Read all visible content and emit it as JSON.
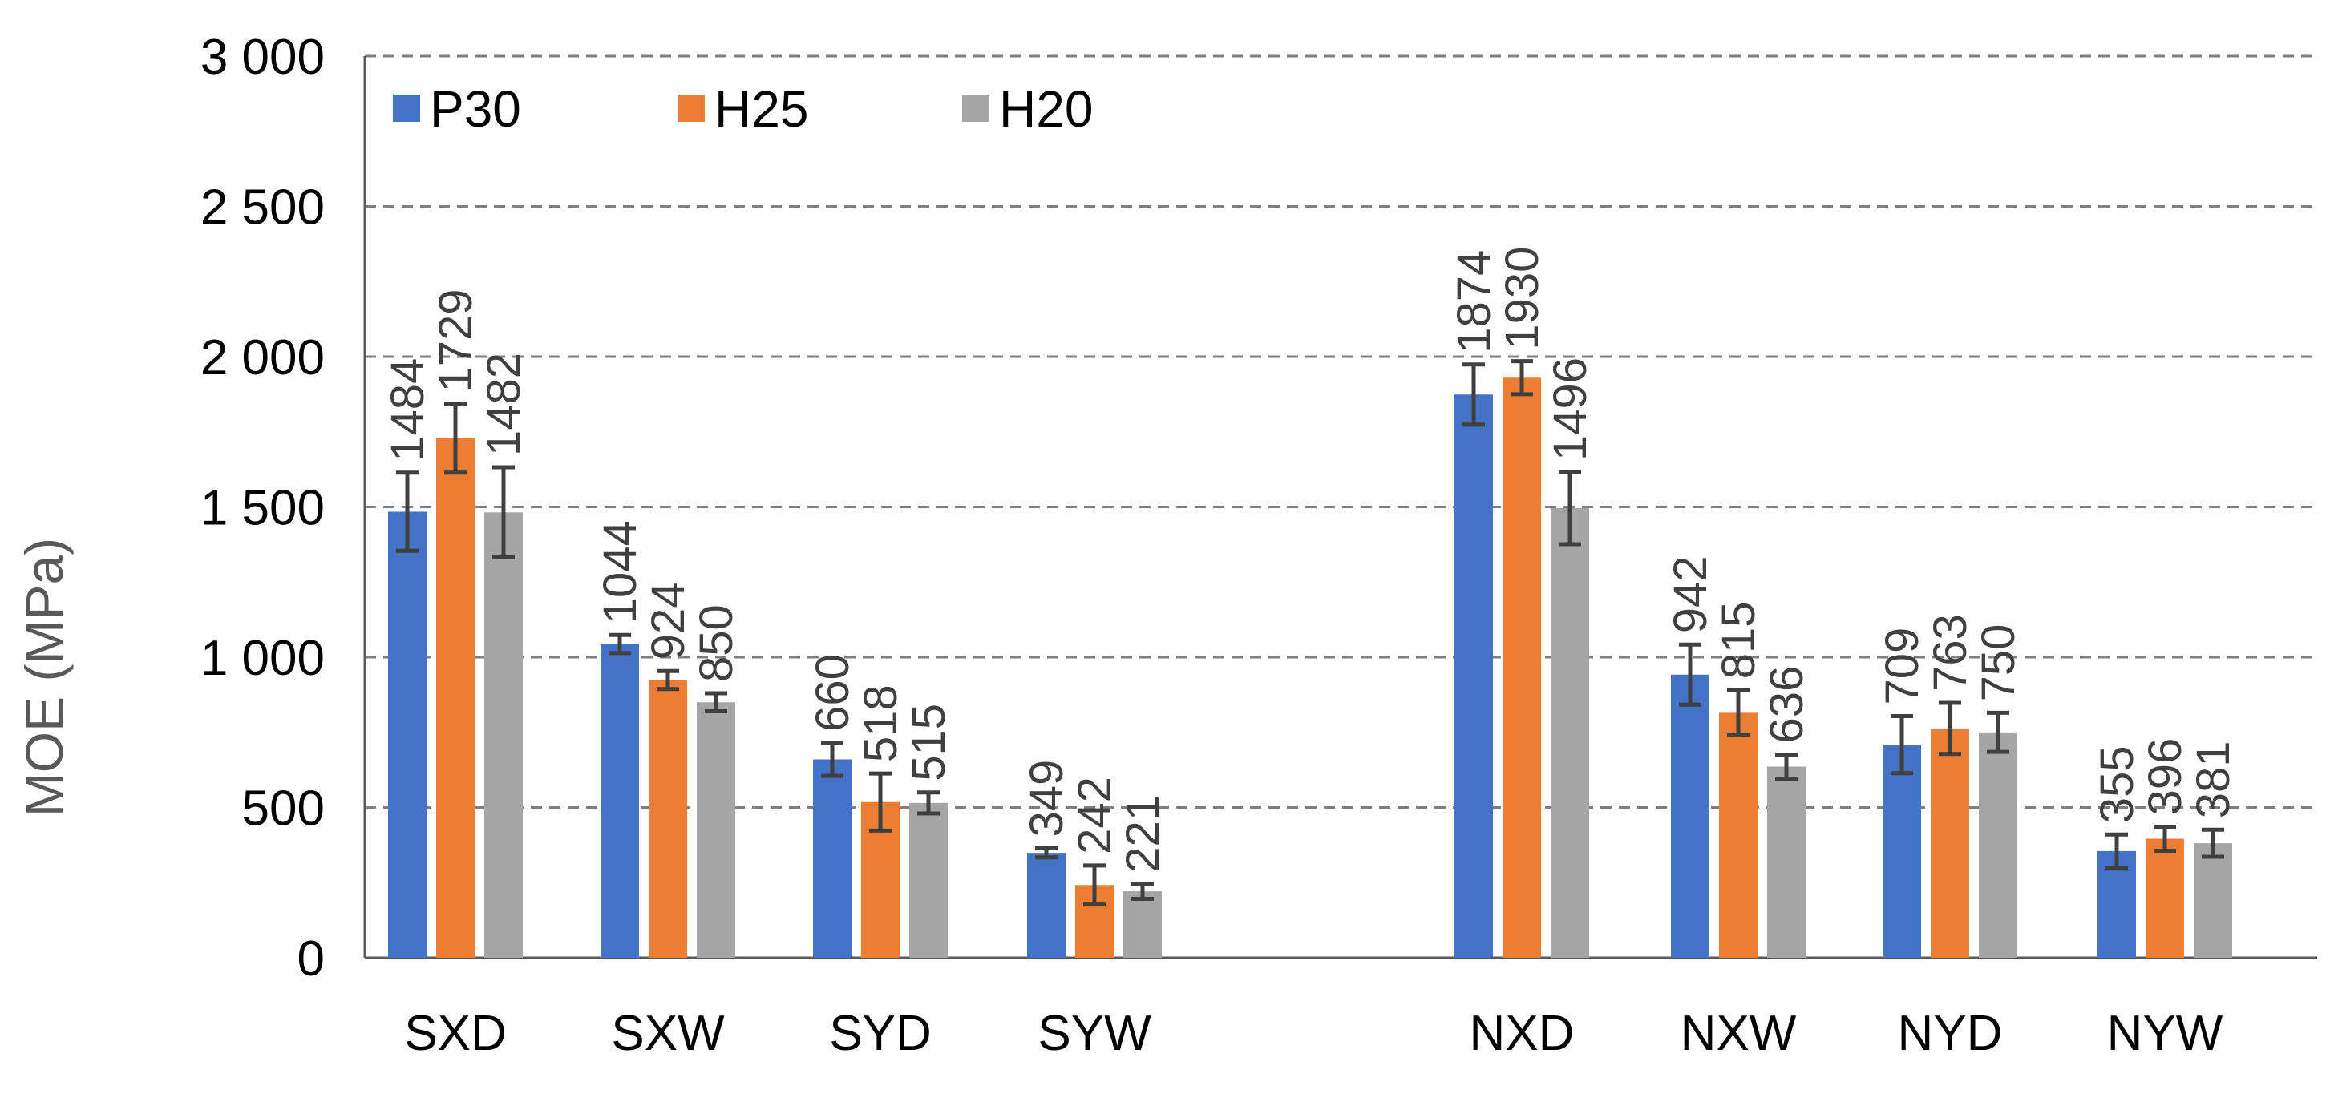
{
  "chart_data": {
    "type": "bar",
    "title": "",
    "xlabel": "",
    "ylabel": "MOE (MPa)",
    "ylim": [
      0,
      3000
    ],
    "yticks": [
      0,
      500,
      1000,
      1500,
      2000,
      2500,
      3000
    ],
    "ytick_labels": [
      "0",
      "500",
      "1 000",
      "1 500",
      "2 000",
      "2 500",
      "3 000"
    ],
    "grid": "horizontal dashed",
    "legend_position": "top-left",
    "categories": [
      "SXD",
      "SXW",
      "SYD",
      "SYW",
      "NXD",
      "NXW",
      "NYD",
      "NYW"
    ],
    "series": [
      {
        "name": "P30",
        "color": "#4472C4",
        "values": [
          1484,
          1044,
          660,
          349,
          1874,
          942,
          709,
          355
        ],
        "errors": [
          130,
          30,
          55,
          15,
          100,
          100,
          95,
          55
        ]
      },
      {
        "name": "H25",
        "color": "#ED7D31",
        "values": [
          1729,
          924,
          518,
          242,
          1930,
          815,
          763,
          396
        ],
        "errors": [
          115,
          30,
          95,
          65,
          55,
          75,
          85,
          40
        ]
      },
      {
        "name": "H20",
        "color": "#A5A5A5",
        "values": [
          1482,
          850,
          515,
          221,
          1496,
          636,
          750,
          381
        ],
        "errors": [
          150,
          30,
          35,
          25,
          120,
          40,
          65,
          45
        ]
      }
    ],
    "data_labels": [
      [
        "1484",
        "1044",
        "660",
        "349",
        "1874",
        "942",
        "709",
        "355"
      ],
      [
        "1729",
        "924",
        "518",
        "242",
        "1930",
        "815",
        "763",
        "396"
      ],
      [
        "1482",
        "850",
        "515",
        "221",
        "1496",
        "636",
        "750",
        "381"
      ]
    ]
  }
}
